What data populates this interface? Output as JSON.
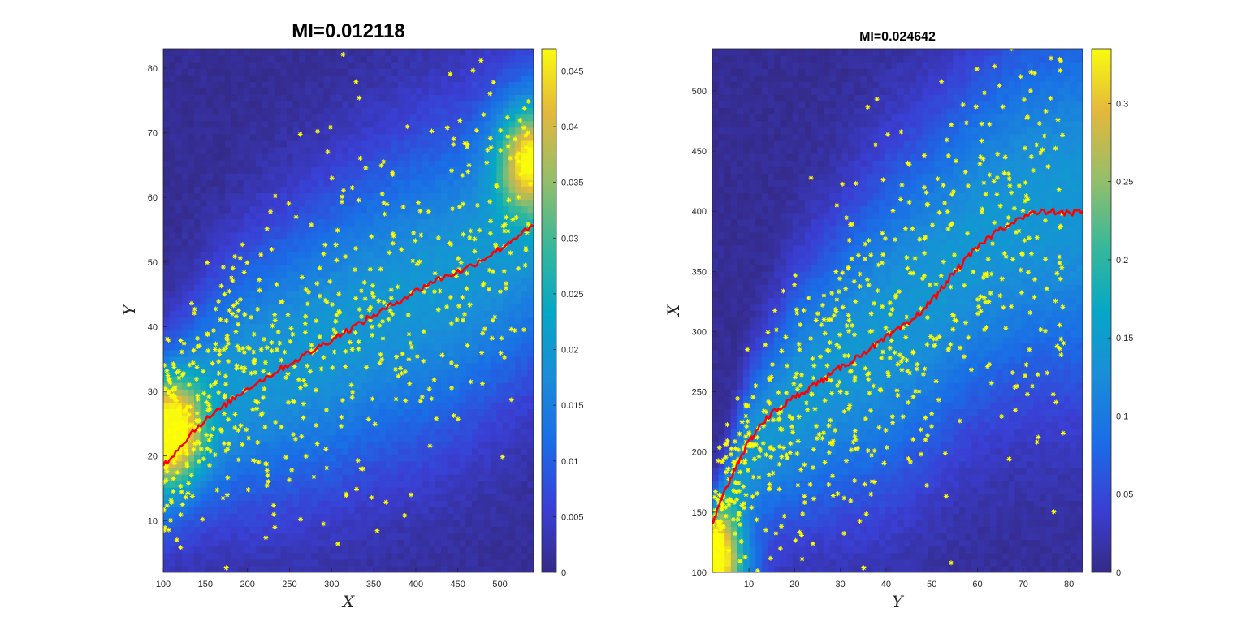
{
  "chart_data": [
    {
      "type": "heatmap",
      "title": "MI=0.012118",
      "xlabel": "X",
      "ylabel": "Y",
      "xlim": [
        100,
        540
      ],
      "ylim": [
        2,
        83
      ],
      "xticks": [
        100,
        150,
        200,
        250,
        300,
        350,
        400,
        450,
        500
      ],
      "yticks": [
        10,
        20,
        30,
        40,
        50,
        60,
        70,
        80
      ],
      "colorbar": {
        "min": 0,
        "max": 0.047,
        "ticks": [
          0,
          0.005,
          0.01,
          0.015,
          0.02,
          0.025,
          0.03,
          0.035,
          0.04,
          0.045
        ]
      },
      "density_band": {
        "description": "joint density of Y given X",
        "center": [
          [
            100,
            22
          ],
          [
            150,
            28
          ],
          [
            200,
            32
          ],
          [
            250,
            35
          ],
          [
            300,
            38
          ],
          [
            350,
            42
          ],
          [
            400,
            45
          ],
          [
            450,
            48
          ],
          [
            500,
            53
          ],
          [
            540,
            57
          ]
        ],
        "spread": [
          [
            100,
            10
          ],
          [
            200,
            14
          ],
          [
            300,
            16
          ],
          [
            400,
            17
          ],
          [
            540,
            17
          ]
        ],
        "peaks": [
          {
            "x": 108,
            "y": 24,
            "value": 0.04
          },
          {
            "x": 535,
            "y": 66,
            "value": 0.035
          }
        ]
      },
      "regression_line": {
        "color": "#ff0000",
        "x": [
          100,
          120,
          140,
          160,
          180,
          200,
          220,
          240,
          260,
          280,
          300,
          320,
          340,
          360,
          380,
          400,
          420,
          440,
          460,
          480,
          500,
          520,
          540
        ],
        "y": [
          18.5,
          21.5,
          24.5,
          26.5,
          28.5,
          30.5,
          32,
          33.5,
          35,
          36.5,
          38,
          39.5,
          41,
          42.5,
          44,
          45.5,
          47,
          48,
          49,
          50.5,
          52,
          54,
          55.5
        ]
      },
      "scatter": {
        "marker": "*",
        "color": "#ffff00",
        "n": 650,
        "description": "samples drawn around the density band"
      }
    },
    {
      "type": "heatmap",
      "title": "MI=0.024642",
      "xlabel": "Y",
      "ylabel": "X",
      "xlim": [
        2,
        83
      ],
      "ylim": [
        100,
        535
      ],
      "xticks": [
        10,
        20,
        30,
        40,
        50,
        60,
        70,
        80
      ],
      "yticks": [
        100,
        150,
        200,
        250,
        300,
        350,
        400,
        450,
        500
      ],
      "colorbar": {
        "min": 0,
        "max": 0.335,
        "ticks": [
          0,
          0.05,
          0.1,
          0.15,
          0.2,
          0.25,
          0.3
        ]
      },
      "density_band": {
        "description": "joint density of X given Y",
        "center": [
          [
            2,
            120
          ],
          [
            10,
            200
          ],
          [
            20,
            240
          ],
          [
            30,
            270
          ],
          [
            40,
            300
          ],
          [
            50,
            335
          ],
          [
            60,
            375
          ],
          [
            70,
            400
          ],
          [
            83,
            410
          ]
        ],
        "spread": [
          [
            2,
            25
          ],
          [
            20,
            70
          ],
          [
            40,
            95
          ],
          [
            60,
            100
          ],
          [
            83,
            110
          ]
        ],
        "peaks": [
          {
            "x": 3,
            "y": 103,
            "value": 0.33
          }
        ]
      },
      "regression_line": {
        "color": "#ff0000",
        "x": [
          2,
          4,
          6,
          8,
          10,
          12,
          15,
          18,
          21,
          24,
          27,
          30,
          33,
          36,
          39,
          42,
          45,
          48,
          51,
          54,
          57,
          60,
          64,
          68,
          72,
          76,
          80,
          83
        ],
        "y": [
          140,
          160,
          178,
          195,
          208,
          220,
          232,
          240,
          248,
          255,
          262,
          270,
          277,
          285,
          292,
          300,
          307,
          318,
          330,
          345,
          358,
          370,
          383,
          392,
          398,
          400,
          398,
          400
        ]
      },
      "scatter": {
        "marker": "*",
        "color": "#ffff00",
        "n": 700,
        "description": "samples drawn around the density band"
      }
    }
  ]
}
